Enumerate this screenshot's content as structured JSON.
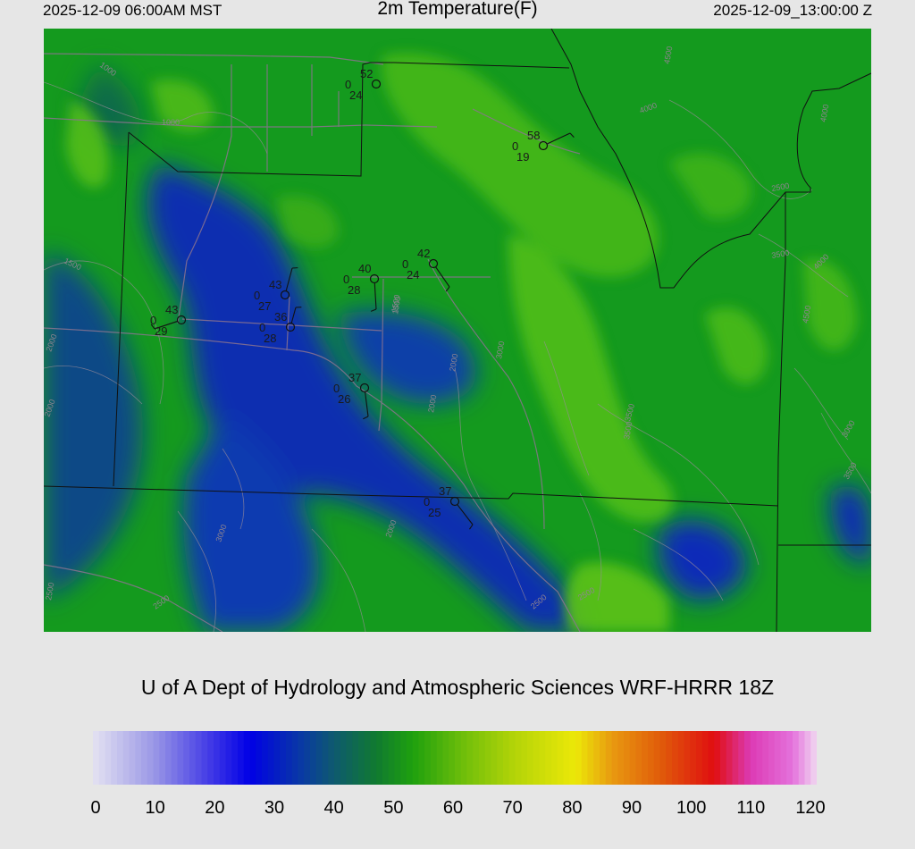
{
  "header": {
    "local_time": "2025-12-09 06:00AM MST",
    "title": "2m Temperature(F)",
    "valid_time": "2025-12-09_13:00:00 Z"
  },
  "credit": "U of A Dept of Hydrology and Atmospheric Sciences WRF-HRRR 18Z",
  "colorbar": {
    "min": 0,
    "max": 120,
    "ticks": [
      "0",
      "10",
      "20",
      "30",
      "40",
      "50",
      "60",
      "70",
      "80",
      "90",
      "100",
      "110",
      "120"
    ],
    "stops": [
      {
        "v": 0,
        "c": "#e4e2f2"
      },
      {
        "v": 10,
        "c": "#9b98e6"
      },
      {
        "v": 20,
        "c": "#3c34e6"
      },
      {
        "v": 26,
        "c": "#0000e6"
      },
      {
        "v": 35,
        "c": "#0a3ca0"
      },
      {
        "v": 40,
        "c": "#0e5a6e"
      },
      {
        "v": 47,
        "c": "#107a30"
      },
      {
        "v": 53,
        "c": "#1ea00e"
      },
      {
        "v": 62,
        "c": "#74c00a"
      },
      {
        "v": 70,
        "c": "#b4d408"
      },
      {
        "v": 80,
        "c": "#ece808"
      },
      {
        "v": 86,
        "c": "#e89a10"
      },
      {
        "v": 94,
        "c": "#e05c0a"
      },
      {
        "v": 103,
        "c": "#e00e10"
      },
      {
        "v": 109,
        "c": "#dc3ab4"
      },
      {
        "v": 116,
        "c": "#e472dc"
      },
      {
        "v": 120,
        "c": "#f0d8f0"
      }
    ]
  },
  "stations": [
    {
      "temp": "52",
      "precip": "0",
      "dew": "24"
    },
    {
      "temp": "58",
      "precip": "0",
      "dew": "19"
    },
    {
      "temp": "42",
      "precip": "0",
      "dew": "24"
    },
    {
      "temp": "40",
      "precip": "0",
      "dew": "28"
    },
    {
      "temp": "43",
      "precip": "0",
      "dew": "27"
    },
    {
      "temp": "36",
      "precip": "0",
      "dew": "28"
    },
    {
      "temp": "43",
      "precip": "0",
      "dew": "29"
    },
    {
      "temp": "37",
      "precip": "0",
      "dew": "26"
    },
    {
      "temp": "37",
      "precip": "0",
      "dew": "25"
    }
  ],
  "contour_labels": [
    "1000",
    "1000",
    "1500",
    "1500",
    "2000",
    "2000",
    "2500",
    "2500",
    "3000",
    "3500",
    "3500",
    "4000",
    "4000",
    "4500",
    "2500",
    "1500",
    "2000",
    "2000",
    "3000",
    "3500",
    "4000",
    "4500",
    "3000",
    "3500",
    "2000",
    "2500",
    "2500"
  ]
}
